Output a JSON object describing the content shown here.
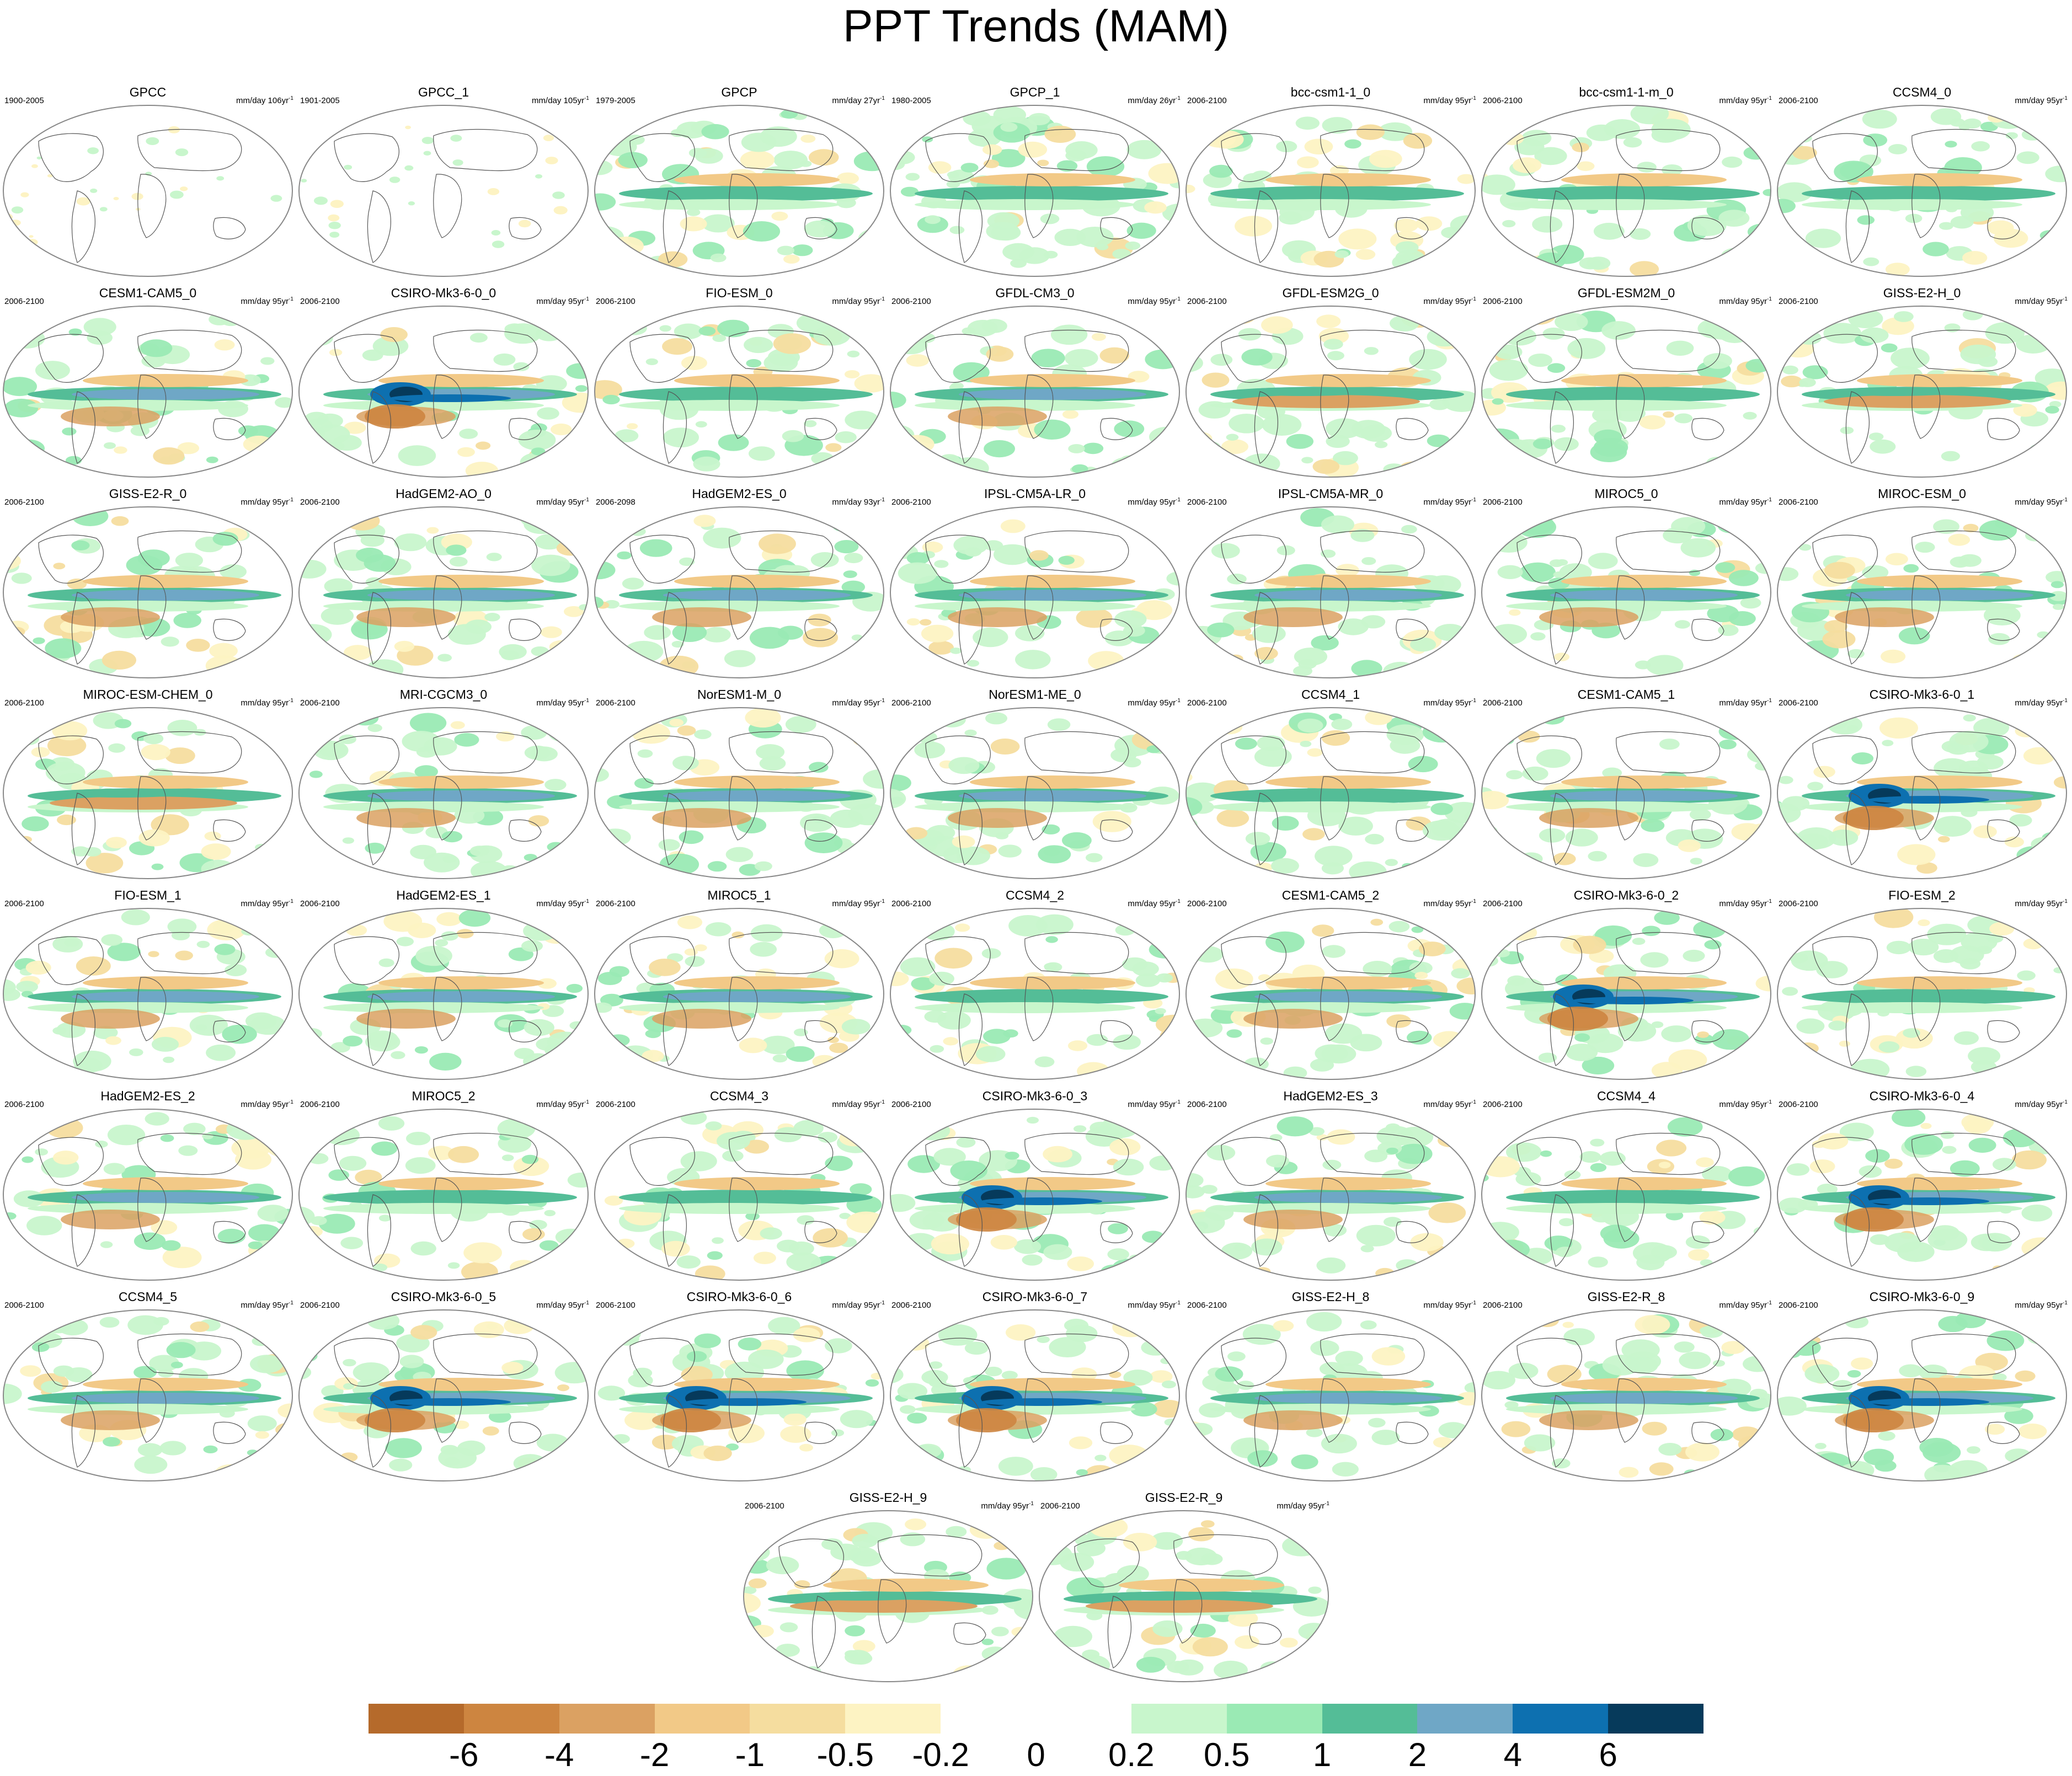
{
  "title": "PPT Trends (MAM)",
  "colors": {
    "land_outline": "#555555",
    "frame": "#888888",
    "scale": [
      "#b56a2b",
      "#cd8540",
      "#dba162",
      "#f2c987",
      "#f5dd9f",
      "#fdf3c3",
      "#ffffff",
      "#ffffff",
      "#c8f6cc",
      "#9aeab4",
      "#54bd97",
      "#6fa7c6",
      "#0d70b0",
      "#063a5b"
    ]
  },
  "panels": [
    {
      "title": "GPCC",
      "years": "1900-2005",
      "units": "mm/day 106yr",
      "sup": "-1",
      "style": "sparse"
    },
    {
      "title": "GPCC_1",
      "years": "1901-2005",
      "units": "mm/day 105yr",
      "sup": "-1",
      "style": "sparse"
    },
    {
      "title": "GPCP",
      "years": "1979-2005",
      "units": "mm/day 27yr",
      "sup": "-1",
      "style": "obs"
    },
    {
      "title": "GPCP_1",
      "years": "1980-2005",
      "units": "mm/day 26yr",
      "sup": "-1",
      "style": "obs"
    },
    {
      "title": "bcc-csm1-1_0",
      "years": "2006-2100",
      "units": "mm/day 95yr",
      "sup": "-1",
      "style": "weak"
    },
    {
      "title": "bcc-csm1-1-m_0",
      "years": "2006-2100",
      "units": "mm/day 95yr",
      "sup": "-1",
      "style": "weak"
    },
    {
      "title": "CCSM4_0",
      "years": "2006-2100",
      "units": "mm/day 95yr",
      "sup": "-1",
      "style": "weak"
    },
    {
      "title": "CESM1-CAM5_0",
      "years": "2006-2100",
      "units": "mm/day 95yr",
      "sup": "-1",
      "style": "band"
    },
    {
      "title": "CSIRO-Mk3-6-0_0",
      "years": "2006-2100",
      "units": "mm/day 95yr",
      "sup": "-1",
      "style": "strong"
    },
    {
      "title": "FIO-ESM_0",
      "years": "2006-2100",
      "units": "mm/day 95yr",
      "sup": "-1",
      "style": "weak"
    },
    {
      "title": "GFDL-CM3_0",
      "years": "2006-2100",
      "units": "mm/day 95yr",
      "sup": "-1",
      "style": "band"
    },
    {
      "title": "GFDL-ESM2G_0",
      "years": "2006-2100",
      "units": "mm/day 95yr",
      "sup": "-1",
      "style": "dry"
    },
    {
      "title": "GFDL-ESM2M_0",
      "years": "2006-2100",
      "units": "mm/day 95yr",
      "sup": "-1",
      "style": "weak"
    },
    {
      "title": "GISS-E2-H_0",
      "years": "2006-2100",
      "units": "mm/day 95yr",
      "sup": "-1",
      "style": "dry"
    },
    {
      "title": "GISS-E2-R_0",
      "years": "2006-2100",
      "units": "mm/day 95yr",
      "sup": "-1",
      "style": "band"
    },
    {
      "title": "HadGEM2-AO_0",
      "years": "2006-2100",
      "units": "mm/day 95yr",
      "sup": "-1",
      "style": "band"
    },
    {
      "title": "HadGEM2-ES_0",
      "years": "2006-2098",
      "units": "mm/day 93yr",
      "sup": "-1",
      "style": "band"
    },
    {
      "title": "IPSL-CM5A-LR_0",
      "years": "2006-2100",
      "units": "mm/day 95yr",
      "sup": "-1",
      "style": "band"
    },
    {
      "title": "IPSL-CM5A-MR_0",
      "years": "2006-2100",
      "units": "mm/day 95yr",
      "sup": "-1",
      "style": "band"
    },
    {
      "title": "MIROC5_0",
      "years": "2006-2100",
      "units": "mm/day 95yr",
      "sup": "-1",
      "style": "band"
    },
    {
      "title": "MIROC-ESM_0",
      "years": "2006-2100",
      "units": "mm/day 95yr",
      "sup": "-1",
      "style": "band"
    },
    {
      "title": "MIROC-ESM-CHEM_0",
      "years": "2006-2100",
      "units": "mm/day 95yr",
      "sup": "-1",
      "style": "dry"
    },
    {
      "title": "MRI-CGCM3_0",
      "years": "2006-2100",
      "units": "mm/day 95yr",
      "sup": "-1",
      "style": "band"
    },
    {
      "title": "NorESM1-M_0",
      "years": "2006-2100",
      "units": "mm/day 95yr",
      "sup": "-1",
      "style": "band"
    },
    {
      "title": "NorESM1-ME_0",
      "years": "2006-2100",
      "units": "mm/day 95yr",
      "sup": "-1",
      "style": "band"
    },
    {
      "title": "CCSM4_1",
      "years": "2006-2100",
      "units": "mm/day 95yr",
      "sup": "-1",
      "style": "weak"
    },
    {
      "title": "CESM1-CAM5_1",
      "years": "2006-2100",
      "units": "mm/day 95yr",
      "sup": "-1",
      "style": "band"
    },
    {
      "title": "CSIRO-Mk3-6-0_1",
      "years": "2006-2100",
      "units": "mm/day 95yr",
      "sup": "-1",
      "style": "strong"
    },
    {
      "title": "FIO-ESM_1",
      "years": "2006-2100",
      "units": "mm/day 95yr",
      "sup": "-1",
      "style": "band"
    },
    {
      "title": "HadGEM2-ES_1",
      "years": "2006-2100",
      "units": "mm/day 95yr",
      "sup": "-1",
      "style": "band"
    },
    {
      "title": "MIROC5_1",
      "years": "2006-2100",
      "units": "mm/day 95yr",
      "sup": "-1",
      "style": "band"
    },
    {
      "title": "CCSM4_2",
      "years": "2006-2100",
      "units": "mm/day 95yr",
      "sup": "-1",
      "style": "weak"
    },
    {
      "title": "CESM1-CAM5_2",
      "years": "2006-2100",
      "units": "mm/day 95yr",
      "sup": "-1",
      "style": "band"
    },
    {
      "title": "CSIRO-Mk3-6-0_2",
      "years": "2006-2100",
      "units": "mm/day 95yr",
      "sup": "-1",
      "style": "strong"
    },
    {
      "title": "FIO-ESM_2",
      "years": "2006-2100",
      "units": "mm/day 95yr",
      "sup": "-1",
      "style": "weak"
    },
    {
      "title": "HadGEM2-ES_2",
      "years": "2006-2100",
      "units": "mm/day 95yr",
      "sup": "-1",
      "style": "band"
    },
    {
      "title": "MIROC5_2",
      "years": "2006-2100",
      "units": "mm/day 95yr",
      "sup": "-1",
      "style": "weak"
    },
    {
      "title": "CCSM4_3",
      "years": "2006-2100",
      "units": "mm/day 95yr",
      "sup": "-1",
      "style": "weak"
    },
    {
      "title": "CSIRO-Mk3-6-0_3",
      "years": "2006-2100",
      "units": "mm/day 95yr",
      "sup": "-1",
      "style": "strong"
    },
    {
      "title": "HadGEM2-ES_3",
      "years": "2006-2100",
      "units": "mm/day 95yr",
      "sup": "-1",
      "style": "band"
    },
    {
      "title": "CCSM4_4",
      "years": "2006-2100",
      "units": "mm/day 95yr",
      "sup": "-1",
      "style": "weak"
    },
    {
      "title": "CSIRO-Mk3-6-0_4",
      "years": "2006-2100",
      "units": "mm/day 95yr",
      "sup": "-1",
      "style": "strong"
    },
    {
      "title": "CCSM4_5",
      "years": "2006-2100",
      "units": "mm/day 95yr",
      "sup": "-1",
      "style": "band"
    },
    {
      "title": "CSIRO-Mk3-6-0_5",
      "years": "2006-2100",
      "units": "mm/day 95yr",
      "sup": "-1",
      "style": "strong"
    },
    {
      "title": "CSIRO-Mk3-6-0_6",
      "years": "2006-2100",
      "units": "mm/day 95yr",
      "sup": "-1",
      "style": "strong"
    },
    {
      "title": "CSIRO-Mk3-6-0_7",
      "years": "2006-2100",
      "units": "mm/day 95yr",
      "sup": "-1",
      "style": "strong"
    },
    {
      "title": "GISS-E2-H_8",
      "years": "2006-2100",
      "units": "mm/day 95yr",
      "sup": "-1",
      "style": "band"
    },
    {
      "title": "GISS-E2-R_8",
      "years": "2006-2100",
      "units": "mm/day 95yr",
      "sup": "-1",
      "style": "band"
    },
    {
      "title": "CSIRO-Mk3-6-0_9",
      "years": "2006-2100",
      "units": "mm/day 95yr",
      "sup": "-1",
      "style": "strong"
    },
    {
      "title": "GISS-E2-H_9",
      "years": "2006-2100",
      "units": "mm/day 95yr",
      "sup": "-1",
      "style": "dry"
    },
    {
      "title": "GISS-E2-R_9",
      "years": "2006-2100",
      "units": "mm/day 95yr",
      "sup": "-1",
      "style": "dry"
    }
  ],
  "colorbar_labels": [
    "-6",
    "-4",
    "-2",
    "-1",
    "-0.5",
    "-0.2",
    "0",
    "0.2",
    "0.5",
    "1",
    "2",
    "4",
    "6"
  ]
}
